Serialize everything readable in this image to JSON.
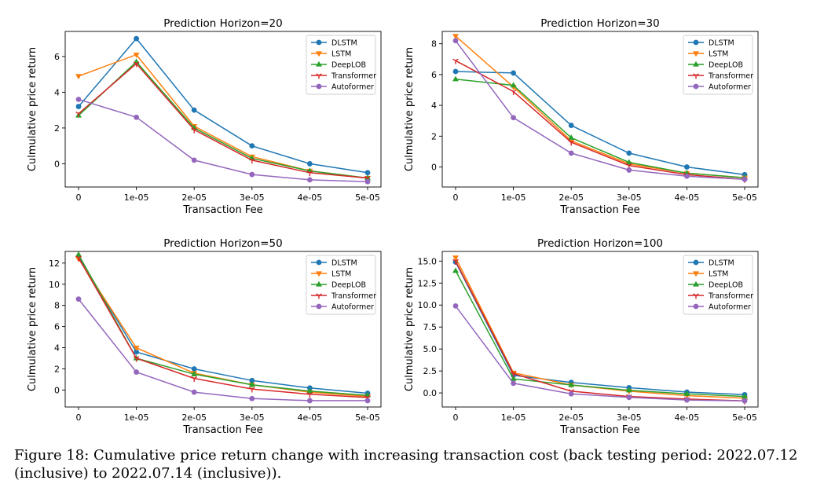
{
  "caption": "Figure 18: Cumulative price return change with increasing transaction cost (back testing period: 2022.07.12 (inclusive) to 2022.07.14 (inclusive)).",
  "colors": {
    "DLSTM": "#1f77b4",
    "LSTM": "#ff7f0e",
    "DeepLOB": "#2ca02c",
    "Transformer": "#d62728",
    "Autoformer": "#9467bd"
  },
  "markers": {
    "DLSTM": "circle",
    "LSTM": "triangle-down",
    "DeepLOB": "triangle-up",
    "Transformer": "tri-down",
    "Autoformer": "circle"
  },
  "chart_data": [
    {
      "type": "line",
      "title": "Prediction Horizon=20",
      "xlabel": "Transaction Fee",
      "ylabel": "Culmulative price return",
      "categories": [
        "0",
        "1e-05",
        "2e-05",
        "3e-05",
        "4e-05",
        "5e-05"
      ],
      "ylim": [
        -1.3,
        7.4
      ],
      "yticks": [
        0,
        2,
        4,
        6
      ],
      "ytick_labels": [
        "0",
        "2",
        "4",
        "6"
      ],
      "legend_position": "top-right",
      "grid": false,
      "series": [
        {
          "name": "DLSTM",
          "values": [
            3.2,
            7.0,
            3.0,
            1.0,
            0.0,
            -0.5
          ]
        },
        {
          "name": "LSTM",
          "values": [
            4.9,
            6.1,
            2.1,
            0.4,
            -0.4,
            -0.8
          ]
        },
        {
          "name": "DeepLOB",
          "values": [
            2.7,
            5.7,
            2.0,
            0.3,
            -0.4,
            -0.8
          ]
        },
        {
          "name": "Transformer",
          "values": [
            2.8,
            5.6,
            1.9,
            0.2,
            -0.5,
            -0.8
          ]
        },
        {
          "name": "Autoformer",
          "values": [
            3.6,
            2.6,
            0.2,
            -0.6,
            -0.9,
            -1.0
          ]
        }
      ]
    },
    {
      "type": "line",
      "title": "Prediction Horizon=30",
      "xlabel": "Transaction Fee",
      "ylabel": "Culmulative price return",
      "categories": [
        "0",
        "1e-05",
        "2e-05",
        "3e-05",
        "4e-05",
        "5e-05"
      ],
      "ylim": [
        -1.3,
        8.8
      ],
      "yticks": [
        0,
        2,
        4,
        6,
        8
      ],
      "ytick_labels": [
        "0",
        "2",
        "4",
        "6",
        "8"
      ],
      "legend_position": "top-right",
      "grid": false,
      "series": [
        {
          "name": "DLSTM",
          "values": [
            6.2,
            6.1,
            2.7,
            0.9,
            0.0,
            -0.5
          ]
        },
        {
          "name": "LSTM",
          "values": [
            8.5,
            5.2,
            1.7,
            0.2,
            -0.4,
            -0.7
          ]
        },
        {
          "name": "DeepLOB",
          "values": [
            5.7,
            5.3,
            1.9,
            0.3,
            -0.4,
            -0.7
          ]
        },
        {
          "name": "Transformer",
          "values": [
            6.9,
            4.9,
            1.6,
            0.1,
            -0.5,
            -0.8
          ]
        },
        {
          "name": "Autoformer",
          "values": [
            8.2,
            3.2,
            0.9,
            -0.2,
            -0.6,
            -0.8
          ]
        }
      ]
    },
    {
      "type": "line",
      "title": "Prediction Horizon=50",
      "xlabel": "Transaction Fee",
      "ylabel": "Culmulative price return",
      "categories": [
        "0",
        "1e-05",
        "2e-05",
        "3e-05",
        "4e-05",
        "5e-05"
      ],
      "ylim": [
        -1.6,
        13.1
      ],
      "yticks": [
        0,
        2,
        4,
        6,
        8,
        10,
        12
      ],
      "ytick_labels": [
        "0",
        "2",
        "4",
        "6",
        "8",
        "10",
        "12"
      ],
      "legend_position": "top-right",
      "grid": false,
      "series": [
        {
          "name": "DLSTM",
          "values": [
            12.6,
            3.6,
            2.0,
            0.9,
            0.2,
            -0.3
          ]
        },
        {
          "name": "LSTM",
          "values": [
            12.4,
            4.0,
            1.6,
            0.5,
            -0.2,
            -0.6
          ]
        },
        {
          "name": "DeepLOB",
          "values": [
            12.8,
            3.0,
            1.5,
            0.5,
            -0.1,
            -0.5
          ]
        },
        {
          "name": "Transformer",
          "values": [
            12.5,
            3.0,
            1.1,
            0.1,
            -0.4,
            -0.7
          ]
        },
        {
          "name": "Autoformer",
          "values": [
            8.6,
            1.7,
            -0.2,
            -0.8,
            -1.0,
            -1.0
          ]
        }
      ]
    },
    {
      "type": "line",
      "title": "Prediction Horizon=100",
      "xlabel": "Transaction Fee",
      "ylabel": "Culmulative price return",
      "categories": [
        "0",
        "1e-05",
        "2e-05",
        "3e-05",
        "4e-05",
        "5e-05"
      ],
      "ylim": [
        -1.6,
        16.1
      ],
      "yticks": [
        0,
        2.5,
        5,
        7.5,
        10,
        12.5,
        15
      ],
      "ytick_labels": [
        "0.0",
        "2.5",
        "5.0",
        "7.5",
        "10.0",
        "12.5",
        "15.0"
      ],
      "legend_position": "top-right",
      "grid": false,
      "series": [
        {
          "name": "DLSTM",
          "values": [
            14.9,
            2.0,
            1.2,
            0.6,
            0.1,
            -0.2
          ]
        },
        {
          "name": "LSTM",
          "values": [
            15.4,
            2.3,
            0.9,
            0.2,
            -0.3,
            -0.6
          ]
        },
        {
          "name": "DeepLOB",
          "values": [
            13.9,
            1.6,
            0.9,
            0.3,
            -0.1,
            -0.4
          ]
        },
        {
          "name": "Transformer",
          "values": [
            15.0,
            2.2,
            0.2,
            -0.4,
            -0.7,
            -0.9
          ]
        },
        {
          "name": "Autoformer",
          "values": [
            9.9,
            1.1,
            -0.1,
            -0.5,
            -0.8,
            -0.9
          ]
        }
      ]
    }
  ]
}
